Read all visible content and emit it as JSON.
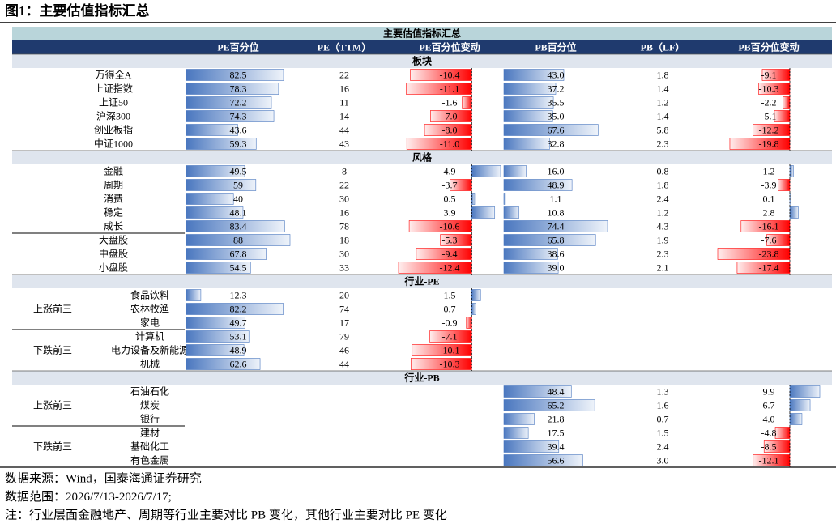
{
  "title": "图1：主要估值指标汇总",
  "table": {
    "caption": "主要估值指标汇总",
    "columns": [
      "PE百分位",
      "PE（TTM）",
      "PE百分位变动",
      "PB百分位",
      "PB（LF）",
      "PB百分位变动"
    ],
    "sections": [
      {
        "title": "板块",
        "rows": [
          {
            "name": "万得全A",
            "cells": [
              82.5,
              22,
              -10.4,
              {
                "value": 43,
                "label": "43.0"
              },
              1.8,
              -9.1
            ]
          },
          {
            "name": "上证指数",
            "cells": [
              78.3,
              16,
              -11.1,
              37.2,
              1.4,
              -10.3
            ]
          },
          {
            "name": "上证50",
            "cells": [
              72.2,
              11,
              -1.6,
              35.5,
              1.2,
              -2.2
            ]
          },
          {
            "name": "沪深300",
            "cells": [
              74.3,
              14,
              {
                "value": -7,
                "label": "-7.0"
              },
              {
                "value": 35,
                "label": "35.0"
              },
              1.4,
              -5.1
            ]
          },
          {
            "name": "创业板指",
            "cells": [
              43.6,
              44,
              {
                "value": -8,
                "label": "-8.0"
              },
              67.6,
              5.8,
              -12.2
            ]
          },
          {
            "name": "中证1000",
            "cells": [
              59.3,
              43,
              {
                "value": -11,
                "label": "-11.0"
              },
              32.8,
              2.3,
              -19.8
            ]
          }
        ]
      },
      {
        "title": "风格",
        "rows": [
          {
            "name": "金融",
            "cells": [
              49.5,
              8,
              4.9,
              {
                "value": 16,
                "label": "16.0"
              },
              0.8,
              1.2
            ]
          },
          {
            "name": "周期",
            "cells": [
              59,
              22,
              -3.7,
              48.9,
              1.8,
              -3.9
            ]
          },
          {
            "name": "消费",
            "cells": [
              40,
              30,
              0.5,
              1.1,
              2.4,
              0.1
            ]
          },
          {
            "name": "稳定",
            "cells": [
              48.1,
              16,
              3.9,
              10.8,
              1.2,
              2.8
            ]
          },
          {
            "name": "成长",
            "cells": [
              83.4,
              78,
              -10.6,
              74.4,
              4.3,
              -16.1
            ]
          },
          {
            "name": "大盘股",
            "cells": [
              88,
              18,
              -5.3,
              65.8,
              1.9,
              -7.6
            ]
          },
          {
            "name": "中盘股",
            "cells": [
              67.8,
              30,
              -9.4,
              38.6,
              2.3,
              -23.8
            ]
          },
          {
            "name": "小盘股",
            "cells": [
              54.5,
              33,
              -12.4,
              {
                "value": 39,
                "label": "39.0"
              },
              2.1,
              -17.4
            ]
          }
        ]
      },
      {
        "title": "行业-PE",
        "rows": [
          {
            "group": "上涨前三",
            "name": "食品饮料",
            "cells": [
              12.3,
              20,
              1.5,
              null,
              null,
              null
            ]
          },
          {
            "name": "农林牧渔",
            "cells": [
              82.2,
              74,
              0.7,
              null,
              null,
              null
            ]
          },
          {
            "name": "家电",
            "cells": [
              49.7,
              17,
              -0.9,
              null,
              null,
              null
            ]
          },
          {
            "group": "下跌前三",
            "name": "计算机",
            "cells": [
              53.1,
              79,
              -7.1,
              null,
              null,
              null
            ]
          },
          {
            "name": "电力设备及新能源",
            "cells": [
              48.9,
              46,
              -10.1,
              null,
              null,
              null
            ]
          },
          {
            "name": "机械",
            "cells": [
              62.6,
              44,
              -10.3,
              null,
              null,
              null
            ]
          }
        ]
      },
      {
        "title": "行业-PB",
        "rows": [
          {
            "group": "上涨前三",
            "name": "石油石化",
            "cells": [
              null,
              null,
              null,
              48.4,
              1.3,
              9.9
            ]
          },
          {
            "name": "煤炭",
            "cells": [
              null,
              null,
              null,
              65.2,
              1.6,
              6.7
            ]
          },
          {
            "name": "银行",
            "cells": [
              null,
              null,
              null,
              21.8,
              0.7,
              {
                "value": 4,
                "label": "4.0"
              }
            ]
          },
          {
            "group": "下跌前三",
            "name": "建材",
            "cells": [
              null,
              null,
              null,
              17.5,
              1.5,
              -4.8
            ]
          },
          {
            "name": "基础化工",
            "cells": [
              null,
              null,
              null,
              39.4,
              2.4,
              -8.5
            ]
          },
          {
            "name": "有色金属",
            "cells": [
              null,
              null,
              null,
              56.6,
              {
                "value": 3,
                "label": "3.0"
              },
              -12.1
            ]
          }
        ]
      }
    ]
  },
  "notes": [
    "数据来源：Wind，国泰海通证券研究",
    "数据范围：2026/7/13-2026/7/17;",
    "注：行业层面金融地产、周期等行业主要对比 PB 变化，其他行业主要对比 PE 变化"
  ]
}
